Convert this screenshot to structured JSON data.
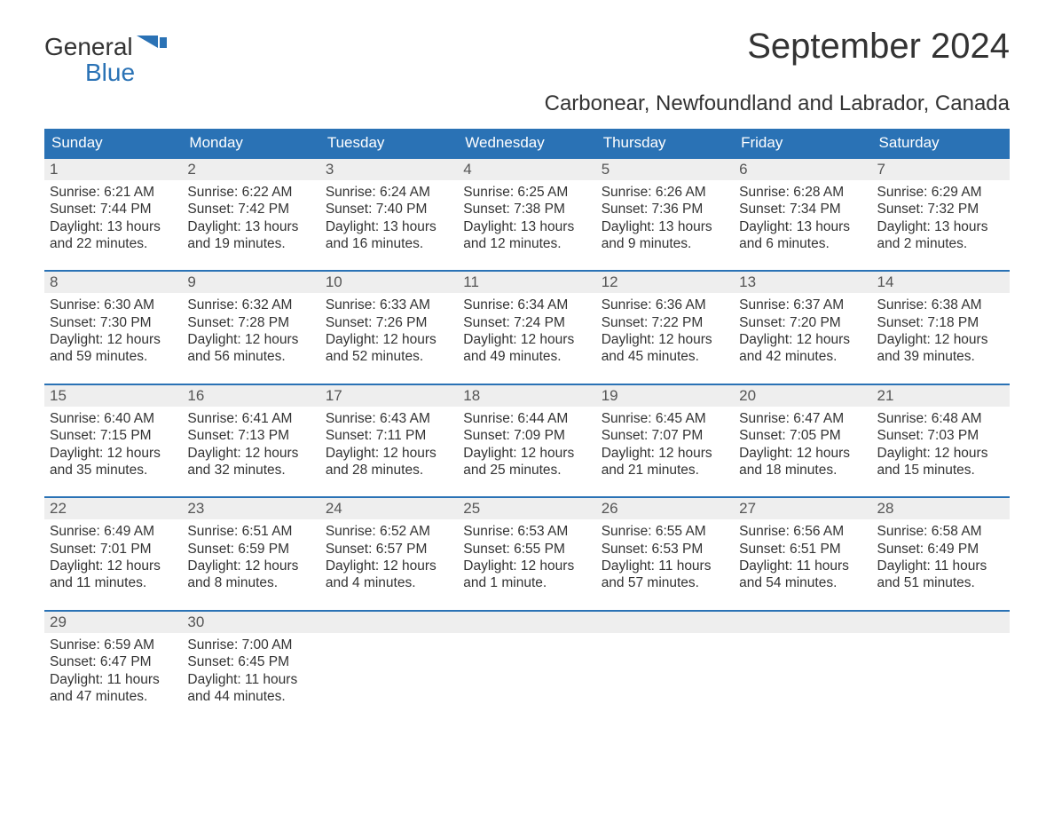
{
  "logo": {
    "word1": "General",
    "word2": "Blue",
    "icon_color": "#2a72b5"
  },
  "title": "September 2024",
  "subtitle": "Carbonear, Newfoundland and Labrador, Canada",
  "colors": {
    "header_bg": "#2a72b5",
    "header_text": "#ffffff",
    "daynum_bg": "#eeeeee",
    "daynum_text": "#555555",
    "body_text": "#333333",
    "divider": "#2a72b5",
    "page_bg": "#ffffff"
  },
  "typography": {
    "title_fontsize": 40,
    "subtitle_fontsize": 24,
    "dayhead_fontsize": 17,
    "daynum_fontsize": 17,
    "cell_fontsize": 15.5,
    "font_family": "Arial"
  },
  "day_headers": [
    "Sunday",
    "Monday",
    "Tuesday",
    "Wednesday",
    "Thursday",
    "Friday",
    "Saturday"
  ],
  "weeks": [
    [
      {
        "n": "1",
        "sr": "Sunrise: 6:21 AM",
        "ss": "Sunset: 7:44 PM",
        "d1": "Daylight: 13 hours",
        "d2": "and 22 minutes."
      },
      {
        "n": "2",
        "sr": "Sunrise: 6:22 AM",
        "ss": "Sunset: 7:42 PM",
        "d1": "Daylight: 13 hours",
        "d2": "and 19 minutes."
      },
      {
        "n": "3",
        "sr": "Sunrise: 6:24 AM",
        "ss": "Sunset: 7:40 PM",
        "d1": "Daylight: 13 hours",
        "d2": "and 16 minutes."
      },
      {
        "n": "4",
        "sr": "Sunrise: 6:25 AM",
        "ss": "Sunset: 7:38 PM",
        "d1": "Daylight: 13 hours",
        "d2": "and 12 minutes."
      },
      {
        "n": "5",
        "sr": "Sunrise: 6:26 AM",
        "ss": "Sunset: 7:36 PM",
        "d1": "Daylight: 13 hours",
        "d2": "and 9 minutes."
      },
      {
        "n": "6",
        "sr": "Sunrise: 6:28 AM",
        "ss": "Sunset: 7:34 PM",
        "d1": "Daylight: 13 hours",
        "d2": "and 6 minutes."
      },
      {
        "n": "7",
        "sr": "Sunrise: 6:29 AM",
        "ss": "Sunset: 7:32 PM",
        "d1": "Daylight: 13 hours",
        "d2": "and 2 minutes."
      }
    ],
    [
      {
        "n": "8",
        "sr": "Sunrise: 6:30 AM",
        "ss": "Sunset: 7:30 PM",
        "d1": "Daylight: 12 hours",
        "d2": "and 59 minutes."
      },
      {
        "n": "9",
        "sr": "Sunrise: 6:32 AM",
        "ss": "Sunset: 7:28 PM",
        "d1": "Daylight: 12 hours",
        "d2": "and 56 minutes."
      },
      {
        "n": "10",
        "sr": "Sunrise: 6:33 AM",
        "ss": "Sunset: 7:26 PM",
        "d1": "Daylight: 12 hours",
        "d2": "and 52 minutes."
      },
      {
        "n": "11",
        "sr": "Sunrise: 6:34 AM",
        "ss": "Sunset: 7:24 PM",
        "d1": "Daylight: 12 hours",
        "d2": "and 49 minutes."
      },
      {
        "n": "12",
        "sr": "Sunrise: 6:36 AM",
        "ss": "Sunset: 7:22 PM",
        "d1": "Daylight: 12 hours",
        "d2": "and 45 minutes."
      },
      {
        "n": "13",
        "sr": "Sunrise: 6:37 AM",
        "ss": "Sunset: 7:20 PM",
        "d1": "Daylight: 12 hours",
        "d2": "and 42 minutes."
      },
      {
        "n": "14",
        "sr": "Sunrise: 6:38 AM",
        "ss": "Sunset: 7:18 PM",
        "d1": "Daylight: 12 hours",
        "d2": "and 39 minutes."
      }
    ],
    [
      {
        "n": "15",
        "sr": "Sunrise: 6:40 AM",
        "ss": "Sunset: 7:15 PM",
        "d1": "Daylight: 12 hours",
        "d2": "and 35 minutes."
      },
      {
        "n": "16",
        "sr": "Sunrise: 6:41 AM",
        "ss": "Sunset: 7:13 PM",
        "d1": "Daylight: 12 hours",
        "d2": "and 32 minutes."
      },
      {
        "n": "17",
        "sr": "Sunrise: 6:43 AM",
        "ss": "Sunset: 7:11 PM",
        "d1": "Daylight: 12 hours",
        "d2": "and 28 minutes."
      },
      {
        "n": "18",
        "sr": "Sunrise: 6:44 AM",
        "ss": "Sunset: 7:09 PM",
        "d1": "Daylight: 12 hours",
        "d2": "and 25 minutes."
      },
      {
        "n": "19",
        "sr": "Sunrise: 6:45 AM",
        "ss": "Sunset: 7:07 PM",
        "d1": "Daylight: 12 hours",
        "d2": "and 21 minutes."
      },
      {
        "n": "20",
        "sr": "Sunrise: 6:47 AM",
        "ss": "Sunset: 7:05 PM",
        "d1": "Daylight: 12 hours",
        "d2": "and 18 minutes."
      },
      {
        "n": "21",
        "sr": "Sunrise: 6:48 AM",
        "ss": "Sunset: 7:03 PM",
        "d1": "Daylight: 12 hours",
        "d2": "and 15 minutes."
      }
    ],
    [
      {
        "n": "22",
        "sr": "Sunrise: 6:49 AM",
        "ss": "Sunset: 7:01 PM",
        "d1": "Daylight: 12 hours",
        "d2": "and 11 minutes."
      },
      {
        "n": "23",
        "sr": "Sunrise: 6:51 AM",
        "ss": "Sunset: 6:59 PM",
        "d1": "Daylight: 12 hours",
        "d2": "and 8 minutes."
      },
      {
        "n": "24",
        "sr": "Sunrise: 6:52 AM",
        "ss": "Sunset: 6:57 PM",
        "d1": "Daylight: 12 hours",
        "d2": "and 4 minutes."
      },
      {
        "n": "25",
        "sr": "Sunrise: 6:53 AM",
        "ss": "Sunset: 6:55 PM",
        "d1": "Daylight: 12 hours",
        "d2": "and 1 minute."
      },
      {
        "n": "26",
        "sr": "Sunrise: 6:55 AM",
        "ss": "Sunset: 6:53 PM",
        "d1": "Daylight: 11 hours",
        "d2": "and 57 minutes."
      },
      {
        "n": "27",
        "sr": "Sunrise: 6:56 AM",
        "ss": "Sunset: 6:51 PM",
        "d1": "Daylight: 11 hours",
        "d2": "and 54 minutes."
      },
      {
        "n": "28",
        "sr": "Sunrise: 6:58 AM",
        "ss": "Sunset: 6:49 PM",
        "d1": "Daylight: 11 hours",
        "d2": "and 51 minutes."
      }
    ],
    [
      {
        "n": "29",
        "sr": "Sunrise: 6:59 AM",
        "ss": "Sunset: 6:47 PM",
        "d1": "Daylight: 11 hours",
        "d2": "and 47 minutes."
      },
      {
        "n": "30",
        "sr": "Sunrise: 7:00 AM",
        "ss": "Sunset: 6:45 PM",
        "d1": "Daylight: 11 hours",
        "d2": "and 44 minutes."
      },
      null,
      null,
      null,
      null,
      null
    ]
  ]
}
